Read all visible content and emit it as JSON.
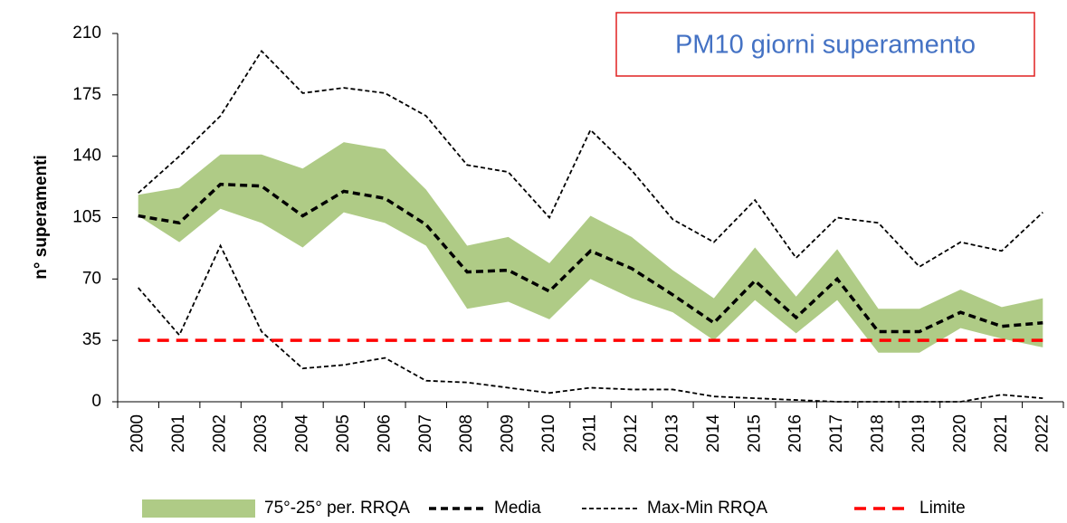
{
  "chart_data": {
    "type": "line",
    "title": "PM10 giorni superamento",
    "y_label": "n° superamenti",
    "categories": [
      "2000",
      "2001",
      "2002",
      "2003",
      "2004",
      "2005",
      "2006",
      "2007",
      "2008",
      "2009",
      "2010",
      "2011",
      "2012",
      "2013",
      "2014",
      "2015",
      "2016",
      "2017",
      "2018",
      "2019",
      "2020",
      "2021",
      "2022"
    ],
    "ylim": [
      0,
      210
    ],
    "yticks": [
      0,
      35,
      70,
      105,
      140,
      175,
      210
    ],
    "legend": "bottom",
    "series": [
      {
        "name": "75°-25° per. RRQA",
        "color": "#afcb86",
        "style": "band",
        "values": [
          118,
          122,
          141,
          141,
          133,
          148,
          144,
          121,
          89,
          94,
          79,
          106,
          94,
          75,
          59,
          88,
          60,
          87,
          53,
          53,
          64,
          54,
          59
        ],
        "lower": [
          106,
          91,
          110,
          102,
          88,
          108,
          102,
          89,
          53,
          57,
          47,
          70,
          59,
          51,
          35,
          58,
          39,
          58,
          28,
          28,
          42,
          36,
          31
        ]
      },
      {
        "name": "Media",
        "color": "#000000",
        "style": "thick-dash",
        "values": [
          106,
          102,
          124,
          123,
          106,
          120,
          116,
          101,
          74,
          75,
          63,
          86,
          76,
          61,
          45,
          69,
          48,
          70,
          40,
          40,
          51,
          43,
          45
        ]
      },
      {
        "name": "Max-Min RRQA",
        "color": "#000000",
        "style": "thin-dash",
        "values": [
          119,
          140,
          163,
          200,
          176,
          179,
          176,
          163,
          135,
          131,
          105,
          155,
          132,
          104,
          91,
          115,
          82,
          105,
          102,
          77,
          91,
          86,
          108
        ],
        "lower": [
          65,
          38,
          89,
          40,
          19,
          21,
          25,
          12,
          11,
          8,
          5,
          8,
          7,
          7,
          3,
          2,
          1,
          0,
          0,
          0,
          0,
          4,
          2
        ]
      },
      {
        "name": "Limite",
        "color": "#ff0000",
        "style": "red-dash",
        "values": [
          35,
          35,
          35,
          35,
          35,
          35,
          35,
          35,
          35,
          35,
          35,
          35,
          35,
          35,
          35,
          35,
          35,
          35,
          35,
          35,
          35,
          35,
          35
        ]
      }
    ]
  }
}
